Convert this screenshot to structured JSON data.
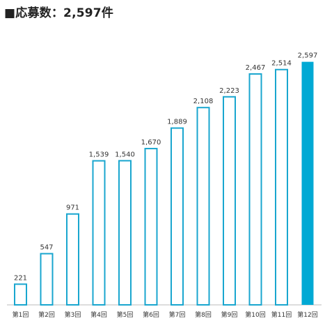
{
  "chart_data": {
    "type": "bar",
    "title": "■応募数：2,597件",
    "xlabel": "",
    "ylabel": "",
    "categories": [
      "第1回",
      "第2回",
      "第3回",
      "第4回",
      "第5回",
      "第6回",
      "第7回",
      "第8回",
      "第9回",
      "第10回",
      "第11回",
      "第12回"
    ],
    "values": [
      221,
      547,
      971,
      1539,
      1540,
      1670,
      1889,
      2108,
      2223,
      2467,
      2514,
      2597
    ],
    "value_labels": [
      "221",
      "547",
      "971",
      "1,539",
      "1,540",
      "1,670",
      "1,889",
      "2,108",
      "2,223",
      "2,467",
      "2,514",
      "2,597"
    ],
    "ylim": [
      0,
      2840
    ],
    "grid": false,
    "legend": "none",
    "highlight_index": 11
  },
  "colors": {
    "bar_stroke": "#19a6cf",
    "bar_fill": "#ffffff",
    "highlight_fill": "#00a9d4",
    "axis": "#bbbbbb"
  }
}
